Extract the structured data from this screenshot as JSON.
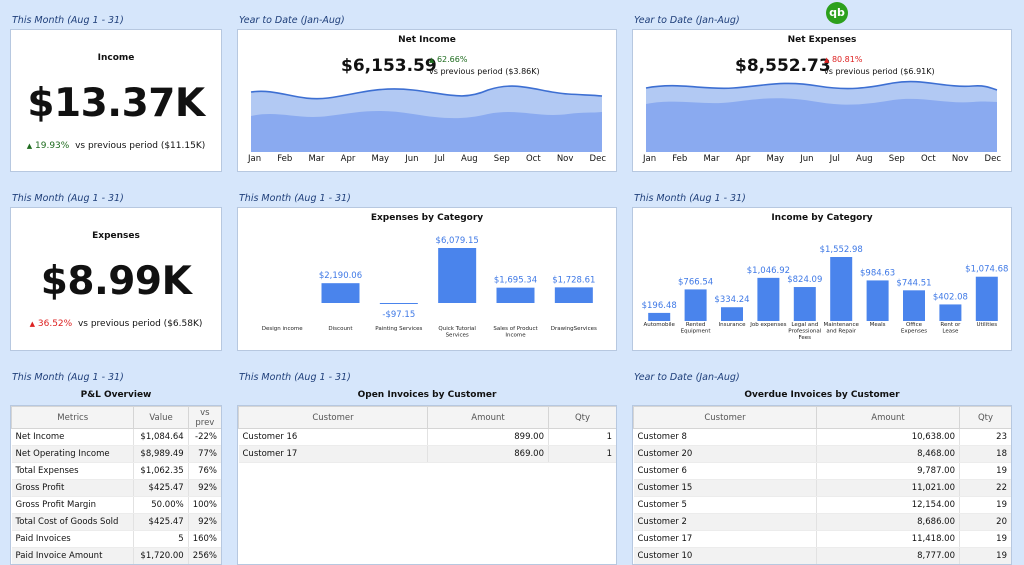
{
  "logo_text": "qb",
  "top": {
    "label_left": "This Month (Aug 1 - 31)",
    "label_mid": "Year to Date (Jan-Aug)",
    "label_right": "Year to Date (Jan-Aug)",
    "income": {
      "title": "Income",
      "value": "$13.37K",
      "delta": "19.93%",
      "vs": "vs previous period ($11.15K)"
    },
    "net_income": {
      "title": "Net Income",
      "value": "$6,153.59",
      "delta": "62.66%",
      "vs": "vs previous period ($3.86K)"
    },
    "net_expenses": {
      "title": "Net Expenses",
      "value": "$8,552.73",
      "delta": "80.81%",
      "vs": "vs previous period ($6.91K)"
    },
    "months": [
      "Jan",
      "Feb",
      "Mar",
      "Apr",
      "May",
      "Jun",
      "Jul",
      "Aug",
      "Sep",
      "Oct",
      "Nov",
      "Dec"
    ]
  },
  "middle": {
    "label_left": "This Month (Aug 1 - 31)",
    "label_mid": "This Month (Aug 1 - 31)",
    "label_right": "This Month (Aug 1 - 31)",
    "expenses": {
      "title": "Expenses",
      "value": "$8.99K",
      "delta": "36.52%",
      "vs": "vs previous period ($6.58K)"
    },
    "exp_cat_title": "Expenses by Category",
    "inc_cat_title": "Income by Category"
  },
  "bottom": {
    "label_left": "This Month (Aug 1 - 31)",
    "label_mid": "This Month (Aug 1 - 31)",
    "label_right": "Year to Date (Jan-Aug)",
    "pl": {
      "title": "P&L Overview",
      "headers": [
        "Metrics",
        "Value",
        "vs prev"
      ],
      "rows": [
        [
          "Net Income",
          "$1,084.64",
          "-22%"
        ],
        [
          "Net Operating Income",
          "$8,989.49",
          "77%"
        ],
        [
          "Total Expenses",
          "$1,062.35",
          "76%"
        ],
        [
          "Gross Profit",
          "$425.47",
          "92%"
        ],
        [
          "Gross Profit Margin",
          "50.00%",
          "100%"
        ],
        [
          "Total Cost of Goods Sold",
          "$425.47",
          "92%"
        ],
        [
          "Paid Invoices",
          "5",
          "160%"
        ],
        [
          "Paid Invoice Amount",
          "$1,720.00",
          "256%"
        ]
      ]
    },
    "open": {
      "title": "Open Invoices by Customer",
      "headers": [
        "Customer",
        "Amount",
        "Qty"
      ],
      "rows": [
        [
          "Customer 16",
          "899.00",
          "1"
        ],
        [
          "Customer 17",
          "869.00",
          "1"
        ]
      ]
    },
    "overdue": {
      "title": "Overdue Invoices by Customer",
      "headers": [
        "Customer",
        "Amount",
        "Qty"
      ],
      "rows": [
        [
          "Customer 8",
          "10,638.00",
          "23"
        ],
        [
          "Customer 20",
          "8,468.00",
          "18"
        ],
        [
          "Customer 6",
          "9,787.00",
          "19"
        ],
        [
          "Customer 15",
          "11,021.00",
          "22"
        ],
        [
          "Customer 5",
          "12,154.00",
          "19"
        ],
        [
          "Customer 2",
          "8,686.00",
          "20"
        ],
        [
          "Customer 17",
          "11,418.00",
          "19"
        ],
        [
          "Customer 10",
          "8,777.00",
          "19"
        ]
      ]
    }
  },
  "chart_data": [
    {
      "type": "bar",
      "title": "Expenses by Category",
      "categories": [
        "Design income",
        "Discount",
        "Painting Services",
        "Quick Tutorial Services",
        "Sales of Product Income",
        "DrawingServices"
      ],
      "values": [
        0,
        2190.06,
        -97.15,
        6079.15,
        1695.34,
        1728.61
      ],
      "labels": [
        "",
        "$2,190.06",
        "-$97.15",
        "$6,079.15",
        "$1,695.34",
        "$1,728.61"
      ],
      "color": "#4a84ec"
    },
    {
      "type": "bar",
      "title": "Income by Category",
      "categories": [
        "Automobile",
        "Rented Equipment",
        "Insurance",
        "Job expenses",
        "Legal and Professional Fees",
        "Maintenance and Repair",
        "Meals",
        "Office Expenses",
        "Rent or Lease",
        "Utilities"
      ],
      "values": [
        196.48,
        766.54,
        334.24,
        1046.92,
        824.09,
        1552.98,
        984.63,
        744.51,
        402.08,
        1074.68
      ],
      "labels": [
        "$196.48",
        "$766.54",
        "$334.24",
        "$1,046.92",
        "$824.09",
        "$1,552.98",
        "$984.63",
        "$744.51",
        "$402.08",
        "$1,074.68"
      ],
      "color": "#4a84ec"
    }
  ]
}
